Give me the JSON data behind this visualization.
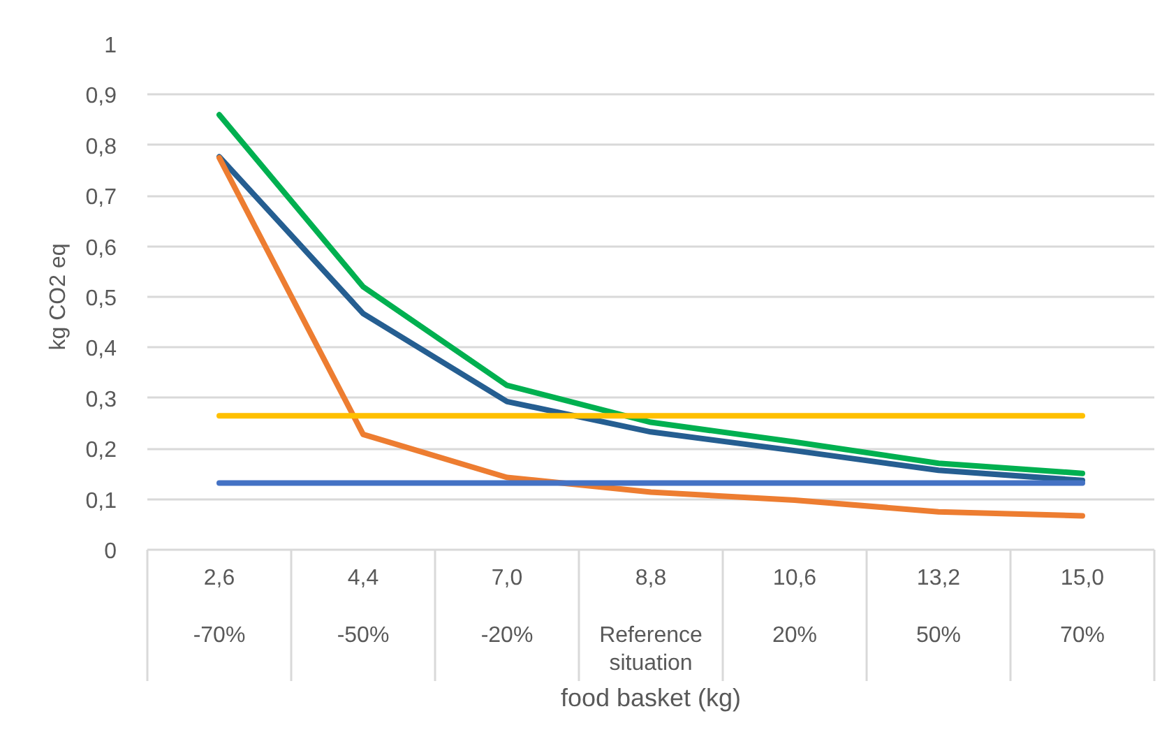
{
  "chart_data": {
    "type": "line",
    "xlabel": "food basket (kg)",
    "ylabel": "kg CO2 eq",
    "categories": [
      "2,6\n-70%",
      "4,4\n-50%",
      "7,0\n-20%",
      "8,8\nReference situation",
      "10,6\n20%",
      "13,2\n50%",
      "15,0\n70%"
    ],
    "series": [
      {
        "color": "#00b050",
        "values": [
          0.86,
          0.52,
          0.325,
          0.252,
          0.213,
          0.171,
          0.151
        ]
      },
      {
        "color": "#255e91",
        "values": [
          0.777,
          0.467,
          0.293,
          0.233,
          0.196,
          0.157,
          0.137
        ]
      },
      {
        "color": "#ed7d31",
        "values": [
          0.775,
          0.228,
          0.143,
          0.114,
          0.098,
          0.075,
          0.067
        ]
      },
      {
        "color": "#ffc000",
        "values": [
          0.265,
          0.265,
          0.265,
          0.265,
          0.265,
          0.265,
          0.265
        ]
      },
      {
        "color": "#4472c4",
        "values": [
          0.132,
          0.132,
          0.132,
          0.132,
          0.132,
          0.132,
          0.132
        ]
      }
    ],
    "ylim": [
      0,
      1
    ],
    "yticks": [
      0,
      {
        "value": 0.1,
        "label": "0,1"
      },
      {
        "value": 0.2,
        "label": "0,2"
      },
      {
        "value": 0.3,
        "label": "0,3"
      },
      {
        "value": 0.4,
        "label": "0,4"
      },
      {
        "value": 0.5,
        "label": "0,5"
      },
      {
        "value": 0.6,
        "label": "0,6"
      },
      {
        "value": 0.7,
        "label": "0,7"
      },
      {
        "value": 0.8,
        "label": "0,8"
      },
      {
        "value": 0.9,
        "label": "0,9"
      },
      1
    ],
    "grid": "y",
    "marker": "none",
    "line_style": "solid"
  }
}
